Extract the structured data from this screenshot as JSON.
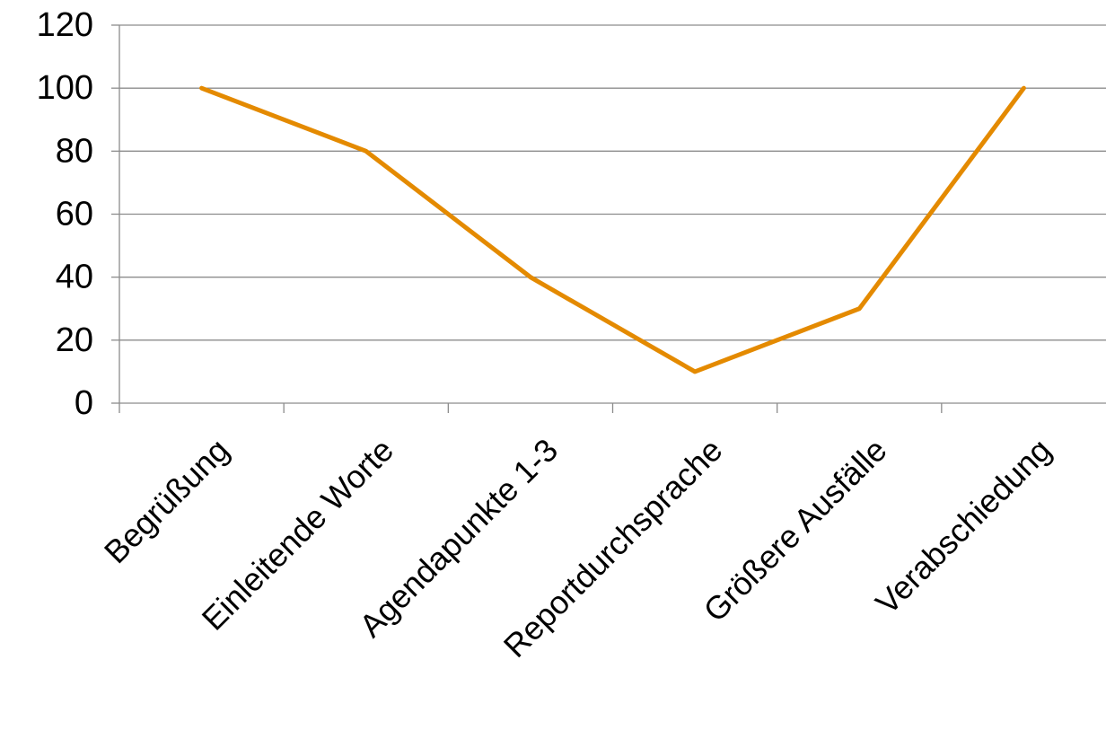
{
  "chart_data": {
    "type": "line",
    "title": "",
    "xlabel": "",
    "ylabel": "",
    "categories": [
      "Begrüßung",
      "Einleitende Worte",
      "Agendapunkte 1-3",
      "Reportdurchsprache",
      "Größere Ausfälle",
      "Verabschiedung"
    ],
    "series": [
      {
        "values": [
          100,
          80,
          40,
          10,
          30,
          100
        ],
        "color": "#E48A00"
      }
    ],
    "ylim": [
      0,
      120
    ],
    "yticks": [
      0,
      20,
      40,
      60,
      80,
      100,
      120
    ],
    "grid": true,
    "legend": "none"
  }
}
